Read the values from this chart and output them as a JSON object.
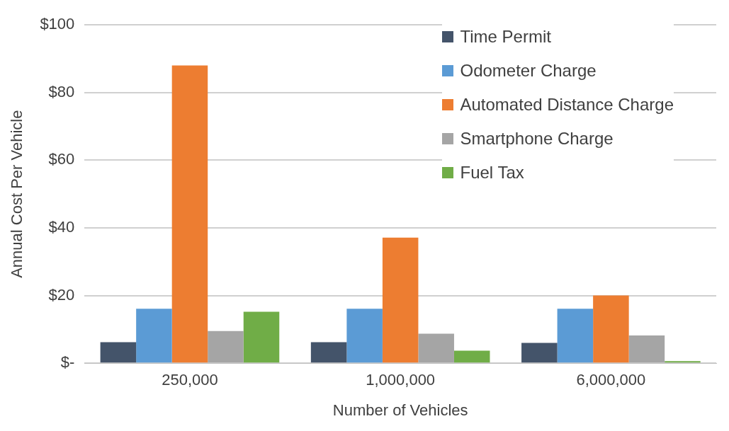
{
  "chart_data": {
    "type": "bar",
    "xlabel": "Number of Vehicles",
    "ylabel": "Annual Cost Per Vehicle",
    "categories": [
      "250,000",
      "1,000,000",
      "6,000,000"
    ],
    "series": [
      {
        "name": "Time Permit",
        "color": "#44546a",
        "values": [
          6.2,
          6.2,
          6.0
        ]
      },
      {
        "name": "Odometer Charge",
        "color": "#5b9bd5",
        "values": [
          16.1,
          16.1,
          16.1
        ]
      },
      {
        "name": "Automated Distance Charge",
        "color": "#ed7d31",
        "values": [
          88.0,
          37.1,
          20.0
        ]
      },
      {
        "name": "Smartphone Charge",
        "color": "#a5a5a5",
        "values": [
          9.5,
          8.7,
          8.2
        ]
      },
      {
        "name": "Fuel Tax",
        "color": "#70ad47",
        "values": [
          15.2,
          3.7,
          0.6
        ]
      }
    ],
    "ylim": [
      0,
      100
    ],
    "yticks": [
      {
        "value": 0,
        "label": "$-"
      },
      {
        "value": 20,
        "label": "$20"
      },
      {
        "value": 40,
        "label": "$40"
      },
      {
        "value": 60,
        "label": "$60"
      },
      {
        "value": 80,
        "label": "$80"
      },
      {
        "value": 100,
        "label": "$100"
      }
    ],
    "grid": "y",
    "legend": "top right"
  }
}
